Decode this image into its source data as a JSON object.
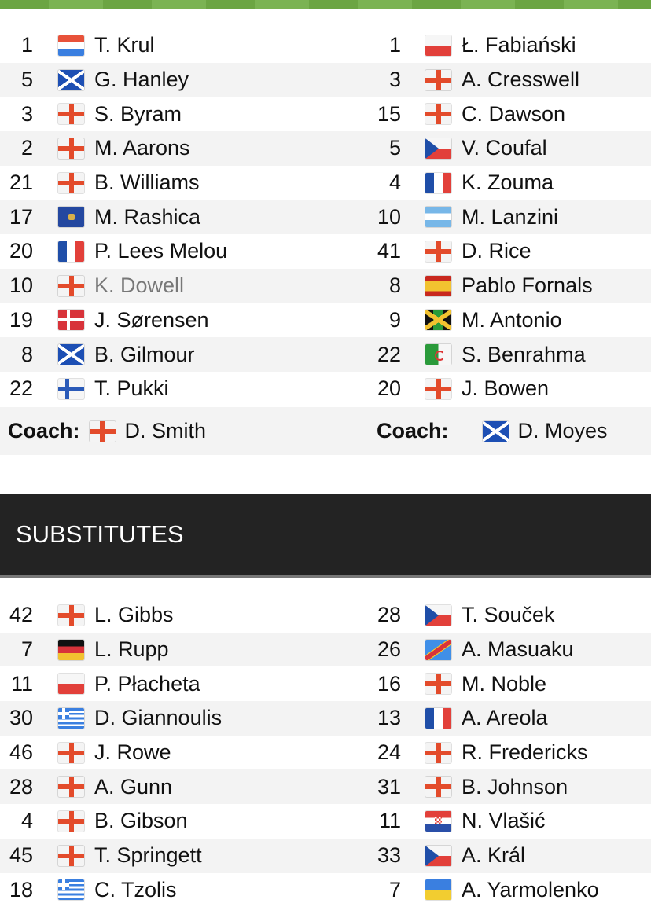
{
  "lineups": [
    {
      "home": {
        "num": "1",
        "flag": "ned",
        "name": "T. Krul"
      },
      "away": {
        "num": "1",
        "flag": "pol",
        "name": "Ł. Fabiański"
      }
    },
    {
      "home": {
        "num": "5",
        "flag": "sco",
        "name": "G. Hanley"
      },
      "away": {
        "num": "3",
        "flag": "eng",
        "name": "A. Cresswell"
      }
    },
    {
      "home": {
        "num": "3",
        "flag": "eng",
        "name": "S. Byram"
      },
      "away": {
        "num": "15",
        "flag": "eng",
        "name": "C. Dawson"
      }
    },
    {
      "home": {
        "num": "2",
        "flag": "eng",
        "name": "M. Aarons"
      },
      "away": {
        "num": "5",
        "flag": "cze",
        "name": "V. Coufal"
      }
    },
    {
      "home": {
        "num": "21",
        "flag": "eng",
        "name": "B. Williams"
      },
      "away": {
        "num": "4",
        "flag": "fra",
        "name": "K. Zouma"
      }
    },
    {
      "home": {
        "num": "17",
        "flag": "kos",
        "name": "M. Rashica"
      },
      "away": {
        "num": "10",
        "flag": "arg",
        "name": "M. Lanzini"
      }
    },
    {
      "home": {
        "num": "20",
        "flag": "fra",
        "name": "P. Lees Melou"
      },
      "away": {
        "num": "41",
        "flag": "eng",
        "name": "D. Rice"
      }
    },
    {
      "home": {
        "num": "10",
        "flag": "eng",
        "name": "K. Dowell",
        "dim": true
      },
      "away": {
        "num": "8",
        "flag": "esp",
        "name": "Pablo Fornals"
      }
    },
    {
      "home": {
        "num": "19",
        "flag": "den",
        "name": "J. Sørensen"
      },
      "away": {
        "num": "9",
        "flag": "jam",
        "name": "M. Antonio"
      }
    },
    {
      "home": {
        "num": "8",
        "flag": "sco",
        "name": "B. Gilmour"
      },
      "away": {
        "num": "22",
        "flag": "alg",
        "name": "S. Benrahma"
      }
    },
    {
      "home": {
        "num": "22",
        "flag": "fin",
        "name": "T. Pukki"
      },
      "away": {
        "num": "20",
        "flag": "eng",
        "name": "J. Bowen"
      }
    }
  ],
  "coaches": {
    "label": "Coach:",
    "home": {
      "flag": "eng",
      "name": "D. Smith"
    },
    "away": {
      "flag": "sco",
      "name": "D. Moyes"
    }
  },
  "substitutes_title": "SUBSTITUTES",
  "substitutes": [
    {
      "home": {
        "num": "42",
        "flag": "eng",
        "name": "L. Gibbs"
      },
      "away": {
        "num": "28",
        "flag": "cze",
        "name": "T. Souček"
      }
    },
    {
      "home": {
        "num": "7",
        "flag": "ger",
        "name": "L. Rupp"
      },
      "away": {
        "num": "26",
        "flag": "cod",
        "name": "A. Masuaku"
      }
    },
    {
      "home": {
        "num": "11",
        "flag": "pol",
        "name": "P. Płacheta"
      },
      "away": {
        "num": "16",
        "flag": "eng",
        "name": "M. Noble"
      }
    },
    {
      "home": {
        "num": "30",
        "flag": "gre",
        "name": "D. Giannoulis"
      },
      "away": {
        "num": "13",
        "flag": "fra",
        "name": "A. Areola"
      }
    },
    {
      "home": {
        "num": "46",
        "flag": "eng",
        "name": "J. Rowe"
      },
      "away": {
        "num": "24",
        "flag": "eng",
        "name": "R. Fredericks"
      }
    },
    {
      "home": {
        "num": "28",
        "flag": "eng",
        "name": "A. Gunn"
      },
      "away": {
        "num": "31",
        "flag": "eng",
        "name": "B. Johnson"
      }
    },
    {
      "home": {
        "num": "4",
        "flag": "eng",
        "name": "B. Gibson"
      },
      "away": {
        "num": "11",
        "flag": "cro",
        "name": "N. Vlašić"
      }
    },
    {
      "home": {
        "num": "45",
        "flag": "eng",
        "name": "T. Springett"
      },
      "away": {
        "num": "33",
        "flag": "cze",
        "name": "A. Král"
      }
    },
    {
      "home": {
        "num": "18",
        "flag": "gre",
        "name": "C. Tzolis"
      },
      "away": {
        "num": "7",
        "flag": "ukr",
        "name": "A. Yarmolenko"
      }
    }
  ]
}
